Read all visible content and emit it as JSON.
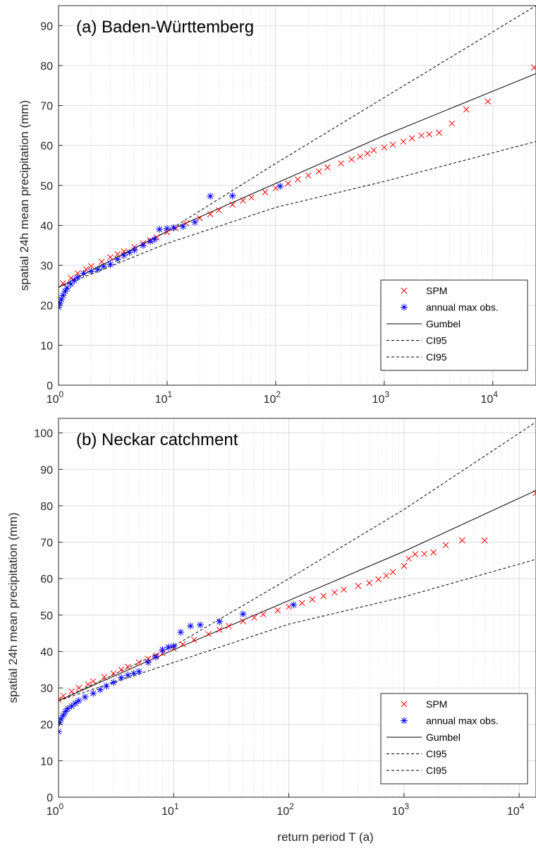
{
  "chart_data": [
    {
      "type": "scatter",
      "title": "(a) Baden-Württemberg",
      "xlabel": "",
      "ylabel": "spatial 24h mean precipitation (mm)",
      "xscale": "log",
      "xlim": [
        1,
        25000
      ],
      "ylim": [
        0,
        95
      ],
      "xticks": [
        {
          "base": "10",
          "exp": "0",
          "value": 1
        },
        {
          "base": "10",
          "exp": "1",
          "value": 10
        },
        {
          "base": "10",
          "exp": "2",
          "value": 100
        },
        {
          "base": "10",
          "exp": "3",
          "value": 1000
        },
        {
          "base": "10",
          "exp": "4",
          "value": 10000
        }
      ],
      "yticks": [
        "0",
        "10",
        "20",
        "30",
        "40",
        "50",
        "60",
        "70",
        "80",
        "90"
      ],
      "grid": true,
      "legend_position": "bottom-right",
      "legend": [
        {
          "label": "SPM",
          "marker": "x",
          "color": "#ff0000"
        },
        {
          "label": "annual max obs.",
          "marker": "*",
          "color": "#0000ff"
        },
        {
          "label": "Gumbel",
          "line": "solid",
          "color": "#000000"
        },
        {
          "label": "CI95",
          "line": "dashed",
          "color": "#000000"
        },
        {
          "label": "CI95",
          "line": "dashed",
          "color": "#000000"
        }
      ],
      "series": [
        {
          "name": "SPM",
          "points": [
            [
              1.1,
              25.5
            ],
            [
              1.3,
              26.8
            ],
            [
              1.5,
              28.0
            ],
            [
              1.8,
              29.0
            ],
            [
              2.0,
              29.8
            ],
            [
              2.5,
              30.9
            ],
            [
              3.0,
              32.0
            ],
            [
              3.5,
              32.8
            ],
            [
              4.0,
              33.5
            ],
            [
              5.0,
              34.6
            ],
            [
              6.0,
              35.5
            ],
            [
              7.0,
              36.3
            ],
            [
              8.0,
              37.0
            ],
            [
              10.0,
              38.3
            ],
            [
              12.0,
              39.3
            ],
            [
              15.0,
              40.5
            ],
            [
              20.0,
              41.8
            ],
            [
              25.0,
              42.8
            ],
            [
              30.0,
              43.8
            ],
            [
              40.0,
              45.2
            ],
            [
              50.0,
              46.2
            ],
            [
              60.0,
              47.0
            ],
            [
              80.0,
              48.3
            ],
            [
              100.0,
              49.3
            ],
            [
              130.0,
              50.5
            ],
            [
              160.0,
              51.5
            ],
            [
              200.0,
              52.5
            ],
            [
              250.0,
              53.5
            ],
            [
              300.0,
              54.5
            ],
            [
              400.0,
              55.5
            ],
            [
              500.0,
              56.5
            ],
            [
              600.0,
              57.2
            ],
            [
              700.0,
              58.0
            ],
            [
              800.0,
              58.8
            ],
            [
              1000.0,
              59.5
            ],
            [
              1200.0,
              60.2
            ],
            [
              1500.0,
              61.0
            ],
            [
              1800.0,
              61.8
            ],
            [
              2200.0,
              62.5
            ],
            [
              2600.0,
              62.8
            ],
            [
              3200.0,
              63.2
            ],
            [
              4200.0,
              65.5
            ],
            [
              5700.0,
              69.0
            ],
            [
              9000.0,
              71.0
            ],
            [
              24000.0,
              79.5
            ]
          ]
        },
        {
          "name": "annual max obs.",
          "points": [
            [
              1.0,
              19.5
            ],
            [
              1.03,
              20.5
            ],
            [
              1.06,
              21.5
            ],
            [
              1.1,
              22.5
            ],
            [
              1.15,
              23.5
            ],
            [
              1.2,
              24.3
            ],
            [
              1.3,
              25.3
            ],
            [
              1.4,
              26.2
            ],
            [
              1.5,
              27.0
            ],
            [
              1.7,
              28.0
            ],
            [
              2.0,
              28.5
            ],
            [
              2.3,
              29.0
            ],
            [
              2.6,
              29.7
            ],
            [
              3.0,
              30.3
            ],
            [
              3.5,
              31.5
            ],
            [
              4.0,
              32.5
            ],
            [
              4.5,
              33.2
            ],
            [
              5.0,
              33.8
            ],
            [
              6.0,
              35.0
            ],
            [
              7.0,
              36.0
            ],
            [
              7.7,
              36.5
            ],
            [
              8.5,
              39.0
            ],
            [
              10.0,
              39.2
            ],
            [
              11.5,
              39.4
            ],
            [
              14.0,
              39.7
            ],
            [
              18.0,
              40.8
            ],
            [
              25.0,
              47.3
            ],
            [
              40.0,
              47.4
            ],
            [
              110.0,
              49.8
            ]
          ]
        },
        {
          "name": "Gumbel",
          "points": [
            [
              1.0,
              24.5
            ],
            [
              10.0,
              38.5
            ],
            [
              100.0,
              50.5
            ],
            [
              1000.0,
              62.5
            ],
            [
              25000.0,
              78.0
            ]
          ]
        },
        {
          "name": "CI95",
          "points": [
            [
              1.0,
              24.5
            ],
            [
              10.0,
              38.5
            ],
            [
              100.0,
              55.5
            ],
            [
              1000.0,
              72.0
            ],
            [
              25000.0,
              95.0
            ]
          ]
        },
        {
          "name": "CI95",
          "points": [
            [
              1.0,
              24.5
            ],
            [
              10.0,
              35.5
            ],
            [
              100.0,
              44.5
            ],
            [
              1000.0,
              51.0
            ],
            [
              25000.0,
              61.0
            ]
          ]
        }
      ]
    },
    {
      "type": "scatter",
      "title": "(b) Neckar catchment",
      "xlabel": "return period T (a)",
      "ylabel": "spatial 24h mean precipitation (mm)",
      "xscale": "log",
      "xlim": [
        1,
        14000
      ],
      "ylim": [
        0,
        104
      ],
      "xticks": [
        {
          "base": "10",
          "exp": "0",
          "value": 1
        },
        {
          "base": "10",
          "exp": "1",
          "value": 10
        },
        {
          "base": "10",
          "exp": "2",
          "value": 100
        },
        {
          "base": "10",
          "exp": "3",
          "value": 1000
        },
        {
          "base": "10",
          "exp": "4",
          "value": 10000
        }
      ],
      "yticks": [
        "0",
        "10",
        "20",
        "30",
        "40",
        "50",
        "60",
        "70",
        "80",
        "90",
        "100"
      ],
      "grid": true,
      "legend_position": "bottom-right",
      "legend": [
        {
          "label": "SPM",
          "marker": "x",
          "color": "#ff0000"
        },
        {
          "label": "annual max obs.",
          "marker": "*",
          "color": "#0000ff"
        },
        {
          "label": "Gumbel",
          "line": "solid",
          "color": "#000000"
        },
        {
          "label": "CI95",
          "line": "dashed",
          "color": "#000000"
        },
        {
          "label": "CI95",
          "line": "dashed",
          "color": "#000000"
        }
      ],
      "series": [
        {
          "name": "SPM",
          "points": [
            [
              1.0,
              26.8
            ],
            [
              1.1,
              27.8
            ],
            [
              1.3,
              29.0
            ],
            [
              1.5,
              30.0
            ],
            [
              1.8,
              31.0
            ],
            [
              2.0,
              31.8
            ],
            [
              2.5,
              33.0
            ],
            [
              3.0,
              34.0
            ],
            [
              3.5,
              35.0
            ],
            [
              4.0,
              35.8
            ],
            [
              5.0,
              37.0
            ],
            [
              6.0,
              38.0
            ],
            [
              7.0,
              38.8
            ],
            [
              8.0,
              39.5
            ],
            [
              10.0,
              40.8
            ],
            [
              12.0,
              42.0
            ],
            [
              15.0,
              43.2
            ],
            [
              20.0,
              44.8
            ],
            [
              25.0,
              46.0
            ],
            [
              30.0,
              47.0
            ],
            [
              40.0,
              48.3
            ],
            [
              50.0,
              49.3
            ],
            [
              60.0,
              50.2
            ],
            [
              80.0,
              51.3
            ],
            [
              100.0,
              52.3
            ],
            [
              130.0,
              53.3
            ],
            [
              160.0,
              54.3
            ],
            [
              200.0,
              55.2
            ],
            [
              250.0,
              56.2
            ],
            [
              300.0,
              57.0
            ],
            [
              400.0,
              58.0
            ],
            [
              500.0,
              58.8
            ],
            [
              600.0,
              59.8
            ],
            [
              700.0,
              60.8
            ],
            [
              800.0,
              61.8
            ],
            [
              1000.0,
              63.5
            ],
            [
              1100.0,
              65.5
            ],
            [
              1250.0,
              66.7
            ],
            [
              1500.0,
              66.8
            ],
            [
              1800.0,
              67.2
            ],
            [
              2300.0,
              69.2
            ],
            [
              3200.0,
              70.5
            ],
            [
              5000.0,
              70.5
            ],
            [
              14000.0,
              83.5
            ]
          ]
        },
        {
          "name": "annual max obs.",
          "points": [
            [
              1.0,
              18.0
            ],
            [
              1.02,
              20.5
            ],
            [
              1.05,
              21.5
            ],
            [
              1.1,
              22.5
            ],
            [
              1.15,
              23.5
            ],
            [
              1.2,
              24.3
            ],
            [
              1.3,
              25.0
            ],
            [
              1.4,
              25.8
            ],
            [
              1.5,
              26.5
            ],
            [
              1.7,
              27.5
            ],
            [
              2.0,
              28.5
            ],
            [
              2.3,
              29.5
            ],
            [
              2.6,
              30.5
            ],
            [
              3.0,
              31.5
            ],
            [
              3.5,
              32.8
            ],
            [
              4.0,
              33.5
            ],
            [
              4.5,
              34.0
            ],
            [
              5.0,
              34.5
            ],
            [
              6.0,
              37.0
            ],
            [
              7.0,
              38.5
            ],
            [
              8.0,
              40.5
            ],
            [
              9.0,
              41.2
            ],
            [
              10.0,
              41.5
            ],
            [
              11.5,
              45.3
            ],
            [
              14.0,
              47.0
            ],
            [
              17.0,
              47.3
            ],
            [
              25.0,
              48.2
            ],
            [
              40.0,
              50.3
            ],
            [
              110.0,
              52.8
            ]
          ]
        },
        {
          "name": "Gumbel",
          "points": [
            [
              1.0,
              26.5
            ],
            [
              10.0,
              40.5
            ],
            [
              100.0,
              54.0
            ],
            [
              1000.0,
              67.5
            ],
            [
              14000.0,
              84.2
            ]
          ]
        },
        {
          "name": "CI95",
          "points": [
            [
              1.0,
              26.5
            ],
            [
              10.0,
              41.5
            ],
            [
              100.0,
              60.0
            ],
            [
              1000.0,
              79.0
            ],
            [
              14000.0,
              103.0
            ]
          ]
        },
        {
          "name": "CI95",
          "points": [
            [
              1.0,
              26.5
            ],
            [
              10.0,
              37.0
            ],
            [
              100.0,
              47.5
            ],
            [
              1000.0,
              55.0
            ],
            [
              14000.0,
              65.3
            ]
          ]
        }
      ]
    }
  ]
}
